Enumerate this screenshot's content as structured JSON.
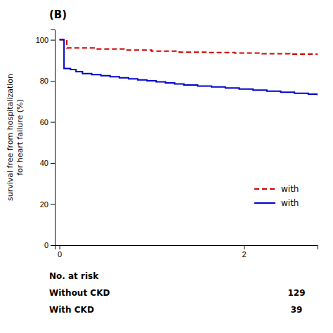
{
  "chart_data": {
    "type": "step",
    "title": "(B)",
    "ylabel": "survival free from hospitalization\nfor heart failure (%)",
    "xlim": [
      -0.05,
      2.8
    ],
    "xticks": [
      0,
      2
    ],
    "ylim": [
      0,
      105
    ],
    "yticks": [
      0,
      20,
      40,
      60,
      80,
      100
    ],
    "grid": false,
    "legend": "lower right",
    "series": [
      {
        "name": "with",
        "color": "#cc0000",
        "line_style": "dashed",
        "x": [
          0,
          0.08,
          0.4,
          0.7,
          1.0,
          1.3,
          1.6,
          1.9,
          2.2,
          2.5,
          2.8
        ],
        "values": [
          100,
          96,
          95.5,
          95,
          94.5,
          94,
          93.8,
          93.5,
          93.2,
          93,
          92.8
        ]
      },
      {
        "name": "with",
        "color": "#0000cc",
        "line_style": "solid",
        "x": [
          0,
          0.05,
          0.12,
          0.18,
          0.25,
          0.35,
          0.45,
          0.55,
          0.65,
          0.75,
          0.85,
          0.95,
          1.05,
          1.15,
          1.25,
          1.35,
          1.5,
          1.65,
          1.8,
          1.95,
          2.1,
          2.25,
          2.4,
          2.55,
          2.7,
          2.8
        ],
        "values": [
          100,
          86,
          85.5,
          84.5,
          83.5,
          83,
          82.5,
          82,
          81.5,
          81,
          80.5,
          80,
          79.5,
          79,
          78.5,
          78,
          77.5,
          77,
          76.5,
          76,
          75.5,
          75,
          74.5,
          74,
          73.5,
          73
        ]
      }
    ],
    "at_risk": {
      "title": "No. at risk",
      "labels": [
        "Without CKD",
        "With CKD"
      ],
      "values": [
        129,
        39
      ]
    }
  }
}
